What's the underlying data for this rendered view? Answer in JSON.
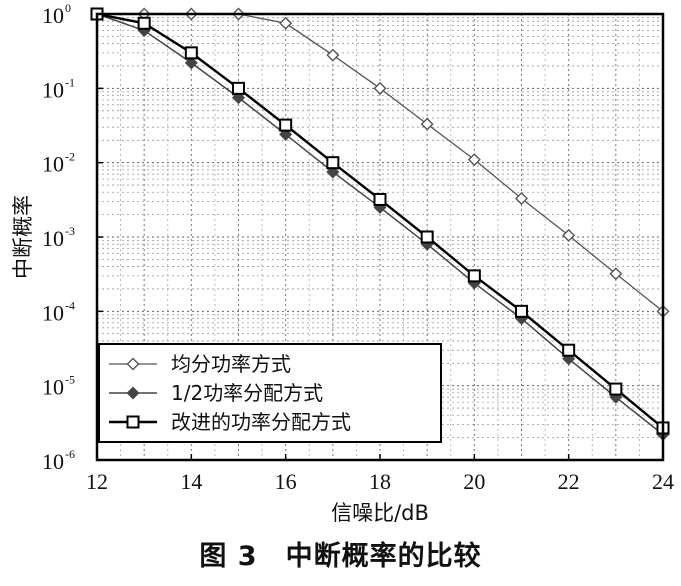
{
  "chart_data": {
    "type": "line",
    "title": "",
    "xlabel": "信噪比/dB",
    "ylabel": "中断概率",
    "xlim": [
      12,
      24
    ],
    "ylim": [
      1e-06,
      1
    ],
    "yscale": "log",
    "grid": true,
    "legend_position": "bottom-left",
    "x_ticks": [
      12,
      14,
      16,
      18,
      20,
      22,
      24
    ],
    "y_ticks": [
      {
        "base": "10",
        "exp": "0"
      },
      {
        "base": "10",
        "exp": "-1"
      },
      {
        "base": "10",
        "exp": "-2"
      },
      {
        "base": "10",
        "exp": "-3"
      },
      {
        "base": "10",
        "exp": "-4"
      },
      {
        "base": "10",
        "exp": "-5"
      },
      {
        "base": "10",
        "exp": "-6"
      }
    ],
    "x": [
      12,
      13,
      14,
      15,
      16,
      17,
      18,
      19,
      20,
      21,
      22,
      23,
      24
    ],
    "series": [
      {
        "name": "均分功率方式",
        "marker": "diamond-open",
        "color": "#555555",
        "values": [
          1.0,
          1.0,
          1.0,
          1.0,
          0.75,
          0.28,
          0.1,
          0.033,
          0.011,
          0.0033,
          0.00105,
          0.00032,
          0.0001
        ]
      },
      {
        "name": "1/2功率分配方式",
        "marker": "diamond-filled",
        "color": "#444444",
        "values": [
          1.0,
          0.6,
          0.22,
          0.075,
          0.024,
          0.0075,
          0.0025,
          0.0008,
          0.00024,
          8e-05,
          2.3e-05,
          7e-06,
          2.2e-06
        ]
      },
      {
        "name": "改进的功率分配方式",
        "marker": "square-open",
        "color": "#000000",
        "values": [
          1.0,
          0.75,
          0.3,
          0.1,
          0.032,
          0.01,
          0.0032,
          0.001,
          0.0003,
          0.0001,
          3e-05,
          9e-06,
          2.7e-06
        ]
      }
    ]
  },
  "caption": {
    "figure_number": "图 3",
    "title": "中断概率的比较"
  }
}
